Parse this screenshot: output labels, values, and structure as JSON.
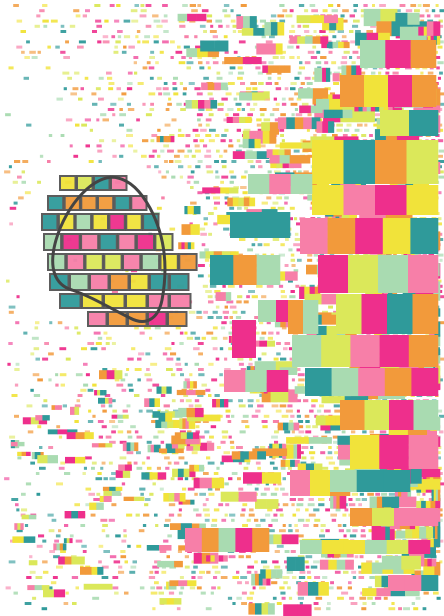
{
  "artwork": {
    "palette": {
      "magenta": "#ee2f8c",
      "pink": "#f77fa8",
      "orange": "#f29a3b",
      "yellow": "#f1e33a",
      "lime": "#dbe85a",
      "mint": "#a9dbb1",
      "teal": "#2f9a9a",
      "selection_outline": "#555555",
      "lasso_stroke": "#444444",
      "background": "#ffffff"
    }
  }
}
